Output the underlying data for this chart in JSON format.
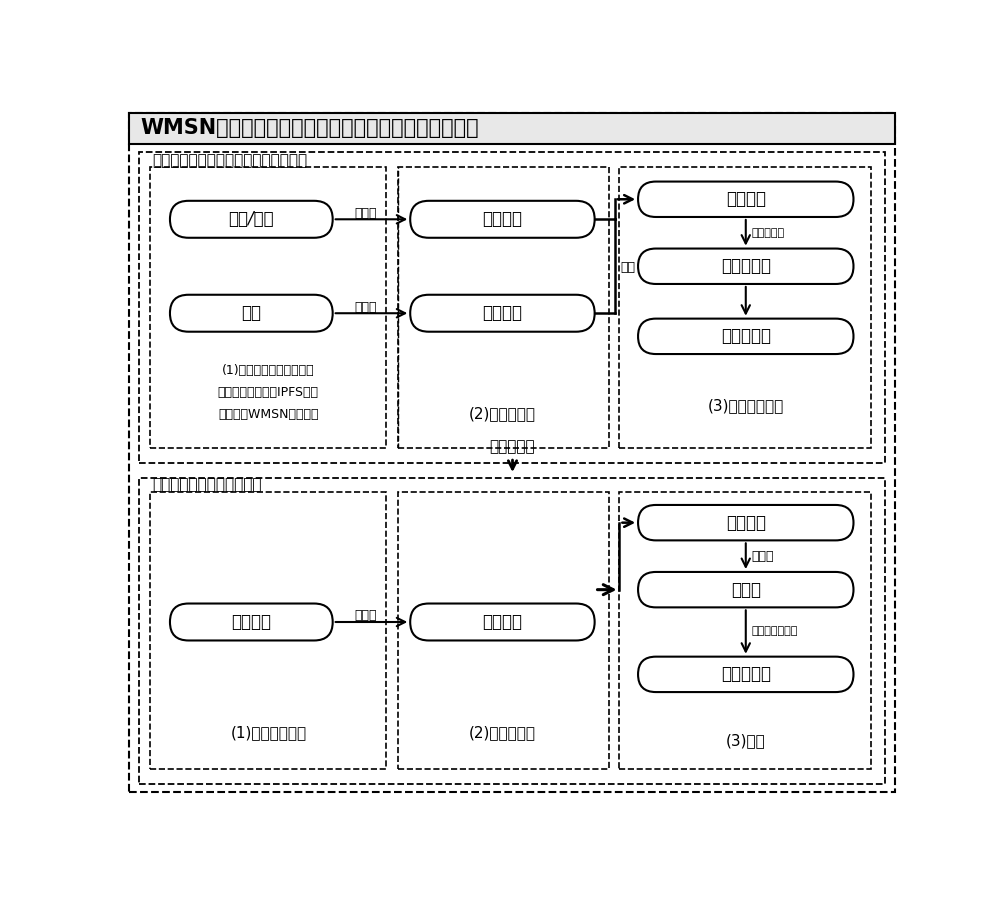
{
  "title": "WMSN区块链的多媒体混合数据近似近邻二元查询方法",
  "phase1_label": "第一阶段：预处理：构建搜索索引结构",
  "phase2_label": "第二阶段：在哈希表中搜索",
  "transfer_label": "导入哈希表",
  "box1_note_lines": [
    "(1)对于每一个存储在在太",
    "坊区块链上的基于IPFS分布",
    "式存储的WMSN混合数据"
  ],
  "box2_note": "(2)特征向量化",
  "box3_note": "(3)计算混合哈希",
  "box4_note": "(1)输入查询数据",
  "box5_note": "(2)特征向量化",
  "box6_note": "(3)搜索",
  "node_shipin": "视频/文本",
  "node_tuxiang": "图像",
  "node_haiming": "海明范式",
  "node_oushi": "欧氏范式",
  "node_hunhe_vec": "混合向量",
  "node_hunhe_hash": "混合哈希值",
  "node_hash_table": "哈希存储表",
  "node_query": "查询数据",
  "node_data_vec_mid": "数据向量",
  "node_data_vec_top": "数据向量",
  "node_hash_val": "哈希值",
  "node_candidate": "候选结果集",
  "label_vec1": "向量化",
  "label_vec2": "向量化",
  "label_mix": "混合",
  "label_hunhe_hash": "混合哈希化",
  "label_hashhua": "哈希化",
  "label_search": "在哈希表中搜索",
  "label_vec_query": "向量化",
  "bg_color": "#ffffff"
}
